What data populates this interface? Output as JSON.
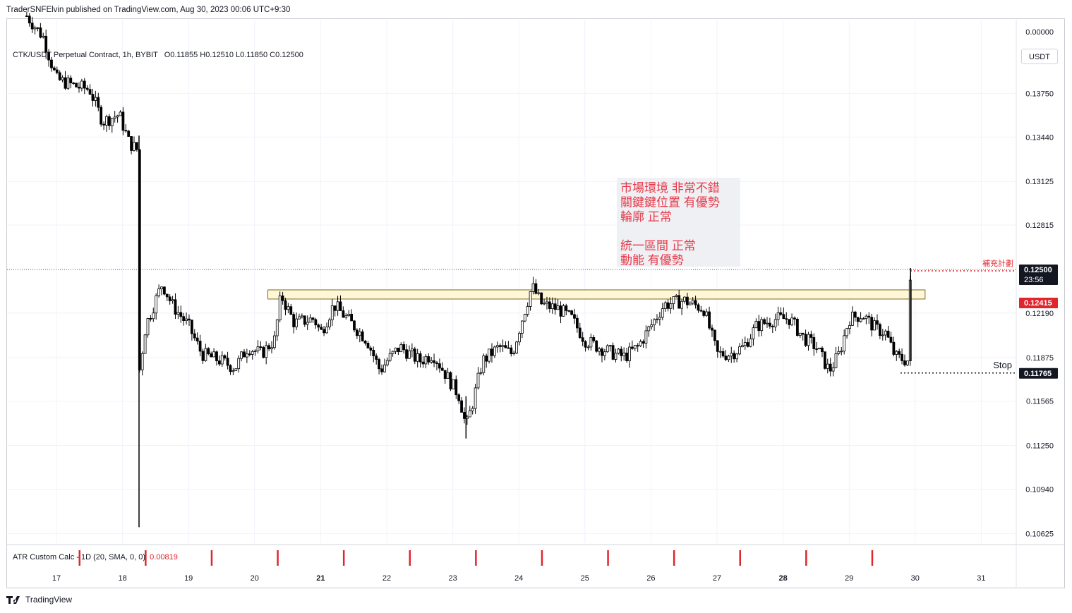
{
  "header": {
    "publisher": "TraderSNFElvin published on TradingView.com, Aug 30, 2023 00:06 UTC+9:30"
  },
  "symbol_legend": {
    "symbol": "CTK/USDT Perpetual Contract, 1h, BYBIT",
    "ohlc": "O0.11855  H0.12510  L0.11850  C0.12500"
  },
  "currency_button": "USDT",
  "atr_pane": {
    "label": "ATR Custom Calc - 1D (20, SMA, 0, 0)",
    "value": "0.00819",
    "axis_value": "0.00000",
    "marker_color": "#e0252d"
  },
  "price_axis": {
    "ticks": [
      "0.00000",
      "0.13750",
      "0.13440",
      "0.13125",
      "0.12815",
      "0.12190",
      "0.11875",
      "0.11565",
      "0.11250",
      "0.10940",
      "0.10625"
    ],
    "last_price": "0.12500",
    "countdown": "23:56",
    "plan_price": "0.12415",
    "stop_price": "0.11765"
  },
  "annotations": {
    "plan_label": "補充計劃",
    "stop_label": "Stop",
    "note_lines": [
      "市場環境 非常不錯",
      "關鍵鍵位置 有優勢",
      "輪廓 正常",
      "",
      "統一區間 正常",
      "動能 有優勢"
    ]
  },
  "colors": {
    "candle": "#000000",
    "plan_line": "#e0252d",
    "stop_line": "#131722",
    "zone_fill": "#fff7d6",
    "zone_border": "#7a6a2a",
    "note_text": "#e8394a",
    "note_bg": "#eef0f3",
    "last_price_bg": "#131722"
  },
  "time_axis": {
    "labels": [
      "17",
      "18",
      "19",
      "20",
      "21",
      "22",
      "23",
      "24",
      "25",
      "26",
      "27",
      "28",
      "29",
      "30",
      "31"
    ],
    "bold": [
      "21",
      "28"
    ]
  },
  "brand": "TradingView",
  "chart_data": {
    "type": "candlestick",
    "title": "CTK/USDT Perpetual Contract, 1h, BYBIT",
    "x_unit": "day of month (Aug 2023), fractional",
    "y_unit": "price (USDT)",
    "xlim": [
      16.5,
      31.5
    ],
    "ylim": [
      0.104,
      0.1445
    ],
    "close_path": [
      [
        16.55,
        0.143
      ],
      [
        16.8,
        0.1415
      ],
      [
        17.0,
        0.1385
      ],
      [
        17.3,
        0.138
      ],
      [
        17.5,
        0.1378
      ],
      [
        17.7,
        0.1355
      ],
      [
        17.95,
        0.136
      ],
      [
        18.1,
        0.134
      ],
      [
        18.22,
        0.1335
      ],
      [
        18.25,
        0.1176
      ],
      [
        18.35,
        0.121
      ],
      [
        18.6,
        0.124
      ],
      [
        18.75,
        0.1225
      ],
      [
        19.0,
        0.121
      ],
      [
        19.2,
        0.119
      ],
      [
        19.5,
        0.1185
      ],
      [
        19.7,
        0.118
      ],
      [
        19.9,
        0.1195
      ],
      [
        20.1,
        0.119
      ],
      [
        20.3,
        0.12
      ],
      [
        20.4,
        0.1232
      ],
      [
        20.6,
        0.1212
      ],
      [
        20.9,
        0.1215
      ],
      [
        21.0,
        0.1205
      ],
      [
        21.2,
        0.1225
      ],
      [
        21.5,
        0.121
      ],
      [
        21.7,
        0.12
      ],
      [
        21.9,
        0.1178
      ],
      [
        22.0,
        0.1185
      ],
      [
        22.2,
        0.1195
      ],
      [
        22.5,
        0.1185
      ],
      [
        22.7,
        0.119
      ],
      [
        22.9,
        0.1175
      ],
      [
        23.1,
        0.116
      ],
      [
        23.2,
        0.1138
      ],
      [
        23.3,
        0.1155
      ],
      [
        23.45,
        0.1185
      ],
      [
        23.7,
        0.1195
      ],
      [
        23.9,
        0.119
      ],
      [
        24.05,
        0.1215
      ],
      [
        24.2,
        0.1238
      ],
      [
        24.35,
        0.1225
      ],
      [
        24.6,
        0.1222
      ],
      [
        24.8,
        0.1215
      ],
      [
        25.0,
        0.12
      ],
      [
        25.2,
        0.1195
      ],
      [
        25.45,
        0.119
      ],
      [
        25.6,
        0.1188
      ],
      [
        25.8,
        0.1195
      ],
      [
        26.0,
        0.121
      ],
      [
        26.2,
        0.1225
      ],
      [
        26.5,
        0.1228
      ],
      [
        26.8,
        0.1222
      ],
      [
        27.0,
        0.119
      ],
      [
        27.2,
        0.119
      ],
      [
        27.4,
        0.1195
      ],
      [
        27.6,
        0.121
      ],
      [
        27.9,
        0.1215
      ],
      [
        28.1,
        0.1215
      ],
      [
        28.3,
        0.1202
      ],
      [
        28.5,
        0.1195
      ],
      [
        28.7,
        0.1178
      ],
      [
        28.85,
        0.119
      ],
      [
        29.0,
        0.1215
      ],
      [
        29.2,
        0.1218
      ],
      [
        29.4,
        0.1208
      ],
      [
        29.55,
        0.1205
      ],
      [
        29.7,
        0.1188
      ],
      [
        29.9,
        0.1185
      ],
      [
        29.93,
        0.125
      ]
    ],
    "wicks": [
      {
        "x": 18.25,
        "low": 0.1067,
        "high": 0.1345
      },
      {
        "x": 23.2,
        "low": 0.113,
        "high": 0.116
      },
      {
        "x": 29.93,
        "low": 0.1185,
        "high": 0.1251
      }
    ],
    "levels": [
      {
        "name": "last",
        "price": 0.125
      },
      {
        "name": "補充計劃",
        "price": 0.12415
      },
      {
        "name": "Stop",
        "price": 0.11765
      }
    ],
    "zone": {
      "x": [
        20.2,
        30.15
      ],
      "y": [
        0.1229,
        0.12355
      ]
    },
    "atr_markers_x": [
      17.35,
      18.35,
      19.35,
      20.35,
      21.35,
      22.35,
      23.35,
      24.35,
      25.35,
      26.35,
      27.35,
      28.35,
      29.35
    ],
    "atr_value": 0.00819,
    "grid": true
  }
}
